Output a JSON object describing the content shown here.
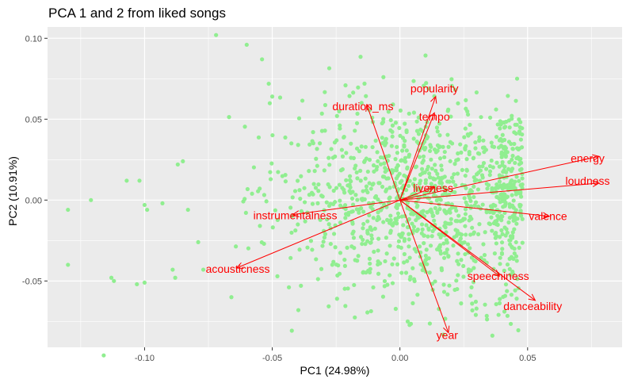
{
  "chart_data": {
    "type": "scatter",
    "title": "PCA 1 and 2 from liked songs",
    "xlabel": "PC1 (24.98%)",
    "ylabel": "PC2 (10.91%)",
    "xlim": [
      -0.138,
      0.087
    ],
    "ylim": [
      -0.091,
      0.107
    ],
    "xticks": [
      -0.1,
      -0.05,
      0.0,
      0.05
    ],
    "xtick_labels": [
      "-0.10",
      "-0.05",
      "0.00",
      "0.05"
    ],
    "yticks": [
      -0.05,
      0.0,
      0.05,
      0.1
    ],
    "ytick_labels": [
      "-0.05",
      "0.00",
      "0.05",
      "0.10"
    ],
    "grid": true,
    "point_color": "#90EE90",
    "arrow_color": "#FF0000",
    "panel_color": "#EBEBEB",
    "loadings": [
      {
        "label": "popularity",
        "x": 0.014,
        "y": 0.064,
        "label_x": 0.0135,
        "label_y": 0.069
      },
      {
        "label": "duration_ms",
        "x": -0.013,
        "y": 0.059,
        "label_x": -0.0145,
        "label_y": 0.058
      },
      {
        "label": "tempo",
        "x": 0.0135,
        "y": 0.054,
        "label_x": 0.0135,
        "label_y": 0.0515
      },
      {
        "label": "energy",
        "x": 0.078,
        "y": 0.027,
        "label_x": 0.0735,
        "label_y": 0.026
      },
      {
        "label": "loudness",
        "x": 0.078,
        "y": 0.0105,
        "label_x": 0.0735,
        "label_y": 0.012
      },
      {
        "label": "liveness",
        "x": 0.0135,
        "y": 0.008,
        "label_x": 0.013,
        "label_y": 0.0075
      },
      {
        "label": "valence",
        "x": 0.0585,
        "y": -0.01,
        "label_x": 0.058,
        "label_y": -0.01
      },
      {
        "label": "instrumentalness",
        "x": -0.042,
        "y": -0.009,
        "label_x": -0.041,
        "label_y": -0.0095
      },
      {
        "label": "acousticness",
        "x": -0.064,
        "y": -0.042,
        "label_x": -0.0635,
        "label_y": -0.0425
      },
      {
        "label": "speechiness",
        "x": 0.039,
        "y": -0.047,
        "label_x": 0.0385,
        "label_y": -0.047
      },
      {
        "label": "danceability",
        "x": 0.053,
        "y": -0.062,
        "label_x": 0.052,
        "label_y": -0.0655
      },
      {
        "label": "year",
        "x": 0.019,
        "y": -0.082,
        "label_x": 0.0185,
        "label_y": -0.0835
      }
    ],
    "points": {
      "count": 1200,
      "center_x": 0.012,
      "center_y": 0.0,
      "spread_x": 0.03,
      "spread_y": 0.032,
      "outliers": [
        [
          -0.13,
          -0.006
        ],
        [
          -0.13,
          -0.04
        ],
        [
          -0.121,
          0.0
        ],
        [
          -0.116,
          -0.096
        ],
        [
          -0.113,
          -0.048
        ],
        [
          -0.112,
          -0.05
        ],
        [
          -0.107,
          0.012
        ],
        [
          -0.102,
          0.012
        ],
        [
          -0.1,
          -0.003
        ],
        [
          -0.099,
          -0.006
        ],
        [
          -0.1,
          -0.051
        ],
        [
          -0.103,
          -0.052
        ],
        [
          -0.093,
          -0.002
        ],
        [
          -0.089,
          -0.043
        ],
        [
          -0.088,
          -0.048
        ],
        [
          -0.087,
          0.022
        ],
        [
          -0.085,
          0.024
        ],
        [
          -0.083,
          -0.006
        ],
        [
          -0.079,
          -0.026
        ],
        [
          -0.077,
          -0.043
        ],
        [
          -0.072,
          0.102
        ],
        [
          -0.066,
          -0.06
        ],
        [
          -0.06,
          0.096
        ],
        [
          -0.054,
          0.087
        ],
        [
          -0.05,
          0.064
        ]
      ]
    }
  }
}
